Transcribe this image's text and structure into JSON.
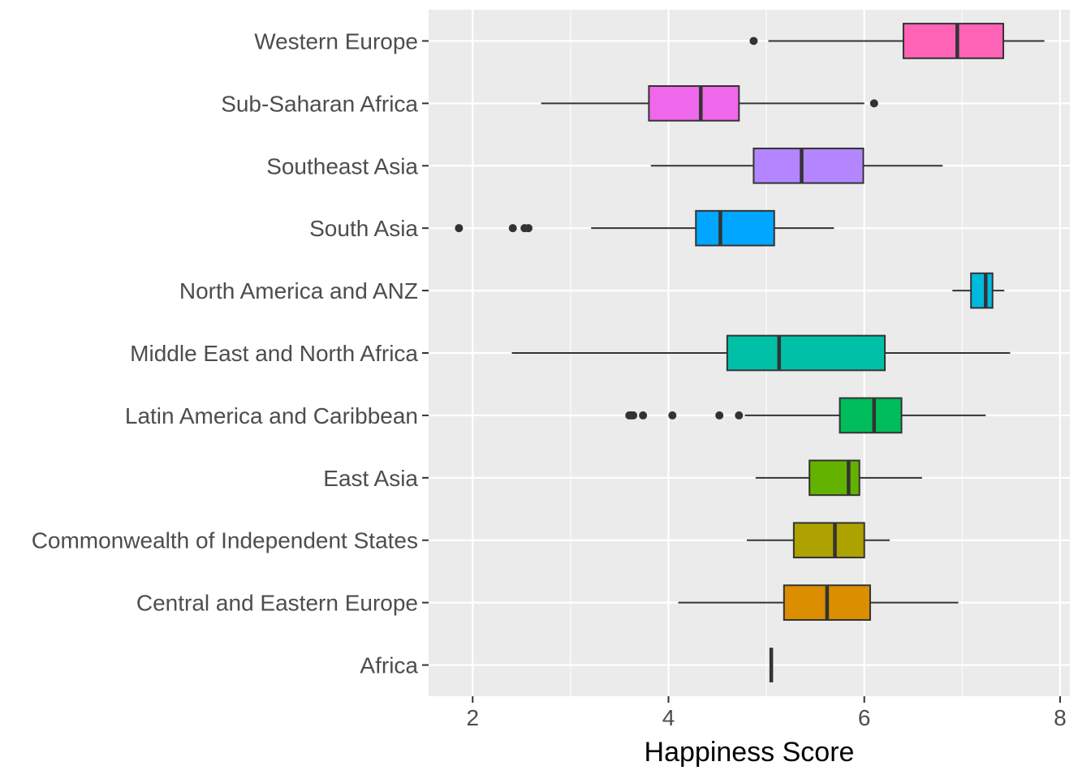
{
  "chart_data": {
    "type": "boxplot",
    "orientation": "horizontal",
    "xlabel": "Happiness Score",
    "ylabel": "",
    "xlim": [
      1.55,
      8.1
    ],
    "x_ticks": [
      2,
      4,
      6,
      8
    ],
    "grid": true,
    "legend": "none",
    "panel_background": "#EBEBEB",
    "categories": [
      "Africa",
      "Central and Eastern Europe",
      "Commonwealth of Independent States",
      "East Asia",
      "Latin America and Caribbean",
      "Middle East and North Africa",
      "North America and ANZ",
      "South Asia",
      "Southeast Asia",
      "Sub-Saharan Africa",
      "Western Europe"
    ],
    "boxes": [
      {
        "category": "Africa",
        "min": 5.05,
        "q1": 5.05,
        "median": 5.05,
        "q3": 5.05,
        "max": 5.05,
        "outliers": [],
        "color": "#F8766D"
      },
      {
        "category": "Central and Eastern Europe",
        "min": 4.1,
        "q1": 5.18,
        "median": 5.62,
        "q3": 6.06,
        "max": 6.96,
        "outliers": [],
        "color": "#DB8E00"
      },
      {
        "category": "Commonwealth of Independent States",
        "min": 4.8,
        "q1": 5.28,
        "median": 5.7,
        "q3": 6.0,
        "max": 6.26,
        "outliers": [],
        "color": "#AEA200"
      },
      {
        "category": "East Asia",
        "min": 4.89,
        "q1": 5.44,
        "median": 5.84,
        "q3": 5.95,
        "max": 6.59,
        "outliers": [],
        "color": "#64B200"
      },
      {
        "category": "Latin America and Caribbean",
        "min": 4.78,
        "q1": 5.75,
        "median": 6.1,
        "q3": 6.38,
        "max": 7.24,
        "outliers": [
          3.6,
          3.62,
          3.64,
          3.74,
          4.04,
          4.52,
          4.72
        ],
        "color": "#00BD5C"
      },
      {
        "category": "Middle East and North Africa",
        "min": 2.4,
        "q1": 4.6,
        "median": 5.13,
        "q3": 6.21,
        "max": 7.49,
        "outliers": [],
        "color": "#00C1A7"
      },
      {
        "category": "North America and ANZ",
        "min": 6.9,
        "q1": 7.09,
        "median": 7.24,
        "q3": 7.31,
        "max": 7.43,
        "outliers": [],
        "color": "#00BADE"
      },
      {
        "category": "South Asia",
        "min": 3.21,
        "q1": 4.28,
        "median": 4.53,
        "q3": 5.08,
        "max": 5.69,
        "outliers": [
          1.86,
          2.41,
          2.53,
          2.57
        ],
        "color": "#00A6FF"
      },
      {
        "category": "Southeast Asia",
        "min": 3.82,
        "q1": 4.87,
        "median": 5.36,
        "q3": 5.99,
        "max": 6.8,
        "outliers": [],
        "color": "#B385FF"
      },
      {
        "category": "Sub-Saharan Africa",
        "min": 2.7,
        "q1": 3.8,
        "median": 4.33,
        "q3": 4.72,
        "max": 6.0,
        "outliers": [
          6.1
        ],
        "color": "#EF67EB"
      },
      {
        "category": "Western Europe",
        "min": 5.02,
        "q1": 6.4,
        "median": 6.95,
        "q3": 7.42,
        "max": 7.84,
        "outliers": [
          4.87
        ],
        "color": "#FF63B6"
      }
    ]
  }
}
